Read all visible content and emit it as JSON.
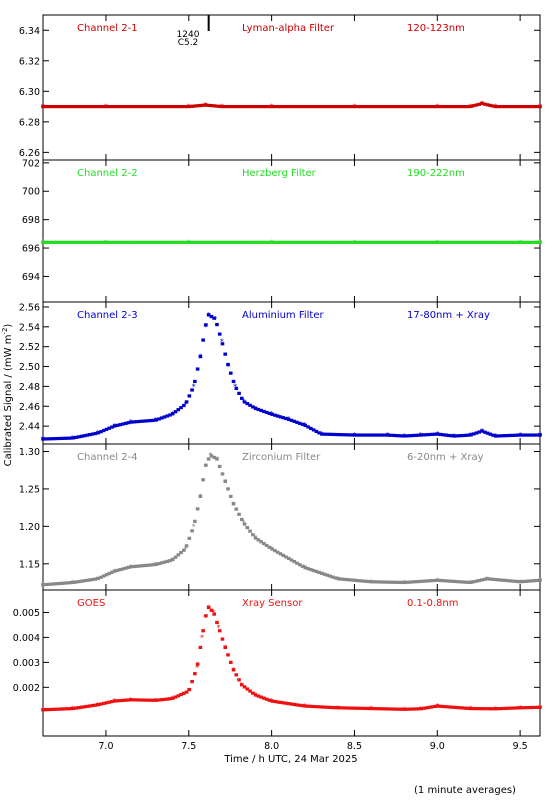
{
  "figure": {
    "ylabel": "Calibrated Signal / (mW m",
    "ylabel_sup": "-2",
    "ylabel_end": ")",
    "xlabel": "Time / h UTC, 24 Mar 2025",
    "note": "(1 minute averages)",
    "x_ticks": [
      "7.0",
      "7.5",
      "8.0",
      "8.5",
      "9.0",
      "9.5"
    ]
  },
  "flare_marker": {
    "time": 1240,
    "time_label": "1240",
    "class_label": "C5.2"
  },
  "chart_data": [
    {
      "type": "scatter",
      "panel": "Channel 2-1",
      "filter": "Lyman-alpha Filter",
      "band": "120-123nm",
      "color": "#cc0000",
      "xlim": [
        6.62,
        9.62
      ],
      "ylim": [
        6.255,
        6.35
      ],
      "yticks": [
        "6.26",
        "6.28",
        "6.30",
        "6.32",
        "6.34"
      ],
      "x": [
        6.62,
        7.0,
        7.5,
        7.6,
        7.7,
        8.0,
        8.5,
        9.0,
        9.2,
        9.27,
        9.35,
        9.62
      ],
      "y": [
        6.29,
        6.29,
        6.29,
        6.291,
        6.29,
        6.29,
        6.29,
        6.29,
        6.29,
        6.292,
        6.29,
        6.29
      ]
    },
    {
      "type": "scatter",
      "panel": "Channel 2-2",
      "filter": "Herzberg Filter",
      "band": "190-222nm",
      "color": "#22dd22",
      "xlim": [
        6.62,
        9.62
      ],
      "ylim": [
        692.2,
        702.2
      ],
      "yticks": [
        "694",
        "696",
        "698",
        "700",
        "702"
      ],
      "x": [
        6.62,
        7.0,
        7.5,
        8.0,
        8.5,
        9.0,
        9.5,
        9.62
      ],
      "y": [
        696.4,
        696.4,
        696.4,
        696.4,
        696.4,
        696.4,
        696.4,
        696.4
      ]
    },
    {
      "type": "scatter",
      "panel": "Channel 2-3",
      "filter": "Aluminium Filter",
      "band": "17-80nm + Xray",
      "color": "#0000cc",
      "xlim": [
        6.62,
        9.62
      ],
      "ylim": [
        2.422,
        2.565
      ],
      "yticks": [
        "2.44",
        "2.46",
        "2.48",
        "2.50",
        "2.52",
        "2.54",
        "2.56"
      ],
      "x": [
        6.62,
        6.8,
        6.95,
        7.05,
        7.15,
        7.3,
        7.4,
        7.48,
        7.53,
        7.57,
        7.6,
        7.62,
        7.66,
        7.7,
        7.74,
        7.78,
        7.83,
        7.9,
        8.0,
        8.1,
        8.2,
        8.3,
        8.5,
        8.7,
        8.8,
        8.9,
        9.0,
        9.1,
        9.2,
        9.27,
        9.35,
        9.5,
        9.62
      ],
      "y": [
        2.427,
        2.428,
        2.433,
        2.44,
        2.444,
        2.446,
        2.452,
        2.462,
        2.48,
        2.51,
        2.54,
        2.552,
        2.548,
        2.525,
        2.5,
        2.48,
        2.465,
        2.458,
        2.452,
        2.447,
        2.441,
        2.432,
        2.431,
        2.431,
        2.43,
        2.431,
        2.432,
        2.43,
        2.431,
        2.435,
        2.43,
        2.431,
        2.431
      ]
    },
    {
      "type": "scatter",
      "panel": "Channel 2-4",
      "filter": "Zirconium Filter",
      "band": "6-20nm + Xray",
      "color": "#888888",
      "xlim": [
        6.62,
        9.62
      ],
      "ylim": [
        1.115,
        1.31
      ],
      "yticks": [
        "1.15",
        "1.20",
        "1.25",
        "1.30"
      ],
      "x": [
        6.62,
        6.8,
        6.95,
        7.05,
        7.15,
        7.3,
        7.4,
        7.48,
        7.53,
        7.57,
        7.6,
        7.63,
        7.67,
        7.72,
        7.77,
        7.83,
        7.9,
        8.0,
        8.2,
        8.4,
        8.6,
        8.8,
        9.0,
        9.2,
        9.3,
        9.5,
        9.62
      ],
      "y": [
        1.122,
        1.125,
        1.13,
        1.14,
        1.146,
        1.149,
        1.155,
        1.17,
        1.2,
        1.24,
        1.28,
        1.295,
        1.29,
        1.26,
        1.23,
        1.205,
        1.185,
        1.17,
        1.145,
        1.13,
        1.126,
        1.125,
        1.128,
        1.125,
        1.13,
        1.126,
        1.128
      ]
    },
    {
      "type": "scatter",
      "panel": "GOES",
      "filter": "Xray Sensor",
      "band": "0.1-0.8nm",
      "color": "#ee1111",
      "xlim": [
        6.62,
        9.62
      ],
      "ylim": [
        5e-05,
        0.0059
      ],
      "yticks": [
        "0.002",
        "0.003",
        "0.004",
        "0.005"
      ],
      "x": [
        6.62,
        6.8,
        6.95,
        7.05,
        7.15,
        7.3,
        7.4,
        7.5,
        7.55,
        7.58,
        7.6,
        7.62,
        7.65,
        7.68,
        7.72,
        7.77,
        7.82,
        7.9,
        8.0,
        8.2,
        8.4,
        8.6,
        8.8,
        8.9,
        9.0,
        9.2,
        9.35,
        9.5,
        9.62
      ],
      "y": [
        0.0011,
        0.00115,
        0.0013,
        0.00145,
        0.0015,
        0.00148,
        0.00155,
        0.00185,
        0.0028,
        0.004,
        0.0048,
        0.0052,
        0.005,
        0.0044,
        0.0036,
        0.0027,
        0.0021,
        0.0017,
        0.00145,
        0.00125,
        0.00118,
        0.00115,
        0.00112,
        0.00114,
        0.00125,
        0.00115,
        0.00114,
        0.00118,
        0.0012
      ]
    }
  ]
}
